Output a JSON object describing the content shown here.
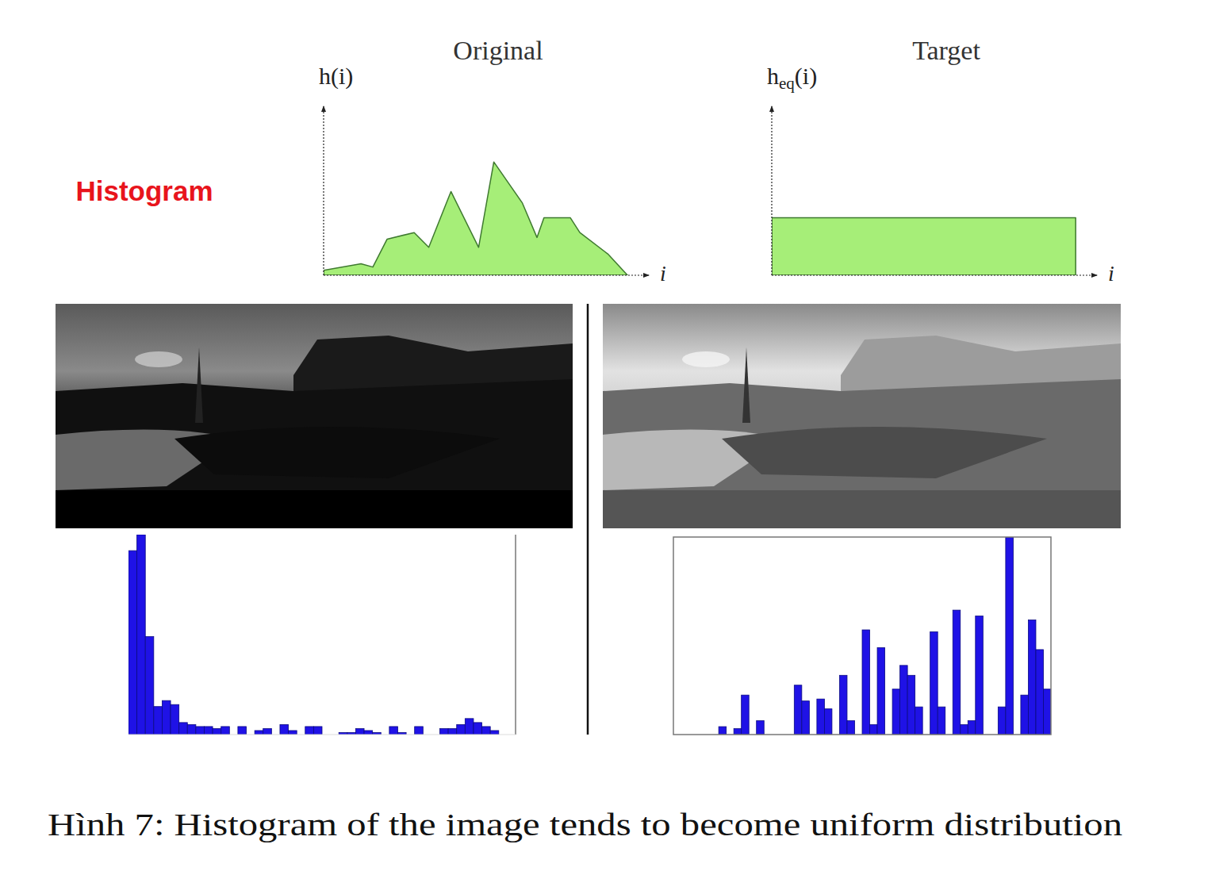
{
  "figure": {
    "label": "Histogram",
    "caption": "Hình 7: Histogram of the image tends to become uniform distribution"
  },
  "chart_data": [
    {
      "type": "area",
      "title": "Original",
      "y_label": "h(i)",
      "x_label": "i",
      "x": [
        0,
        12.3,
        16.2,
        20.9,
        29.8,
        34.6,
        41.9,
        51.0,
        56.0,
        65.4,
        70.2,
        72.5,
        81.2,
        84.3,
        93.5,
        100
      ],
      "values": [
        3,
        7,
        5,
        22,
        26,
        17,
        51,
        17,
        69,
        44,
        23,
        35,
        35,
        26,
        13,
        0
      ],
      "xlim": [
        0,
        107
      ],
      "ylim": [
        0,
        100
      ],
      "color": "#a6ee78",
      "tick_labels": false
    },
    {
      "type": "area",
      "title": "Target",
      "y_label": "heq(i)",
      "x_label": "i",
      "x": [
        0,
        100
      ],
      "values": [
        35,
        35
      ],
      "xlim": [
        0,
        107
      ],
      "ylim": [
        0,
        100
      ],
      "color": "#a6ee78",
      "tick_labels": false
    },
    {
      "type": "histogram",
      "bins": [
        0,
        1,
        2,
        3,
        4,
        5,
        6,
        7,
        8,
        9,
        10,
        11,
        12,
        13,
        14,
        15,
        16,
        17,
        18,
        19,
        20,
        21,
        22,
        23,
        24,
        25,
        26,
        27,
        28,
        29,
        30,
        31,
        32,
        33,
        34,
        35,
        36,
        37,
        38,
        39,
        40,
        41,
        42,
        43,
        44
      ],
      "values": [
        92,
        100,
        49,
        14,
        17,
        15,
        6,
        5,
        4,
        4,
        3,
        4,
        0,
        4,
        0,
        2,
        3,
        0,
        5,
        2,
        0,
        4,
        4,
        0,
        0,
        1,
        1,
        3,
        2,
        1,
        0,
        4,
        1,
        0,
        4,
        0,
        0,
        3,
        3,
        5,
        8,
        6,
        4,
        2
      ],
      "xlim": [
        0,
        46
      ],
      "ylim": [
        0,
        100
      ],
      "color": "#1f12e6",
      "tick_labels": false
    },
    {
      "type": "histogram",
      "bins": [
        6,
        7,
        8,
        9,
        10,
        11,
        12,
        13,
        14,
        15,
        16,
        17,
        18,
        19,
        20,
        21,
        22,
        23,
        24,
        25,
        26,
        27,
        28,
        29,
        30,
        31,
        32,
        33,
        34,
        35,
        36,
        37,
        38,
        39,
        40,
        41,
        42,
        43,
        44,
        45,
        46,
        47,
        48,
        49,
        50
      ],
      "values": [
        4,
        0,
        3,
        20,
        0,
        7,
        0,
        0,
        0,
        0,
        25,
        17,
        0,
        18,
        13,
        0,
        30,
        7,
        0,
        53,
        5,
        44,
        0,
        23,
        35,
        30,
        14,
        0,
        52,
        14,
        0,
        63,
        5,
        7,
        60,
        0,
        0,
        14,
        100,
        0,
        20,
        58,
        43,
        23
      ],
      "xlim": [
        0,
        50
      ],
      "ylim": [
        0,
        100
      ],
      "color": "#1f12e6",
      "tick_labels": false
    }
  ]
}
